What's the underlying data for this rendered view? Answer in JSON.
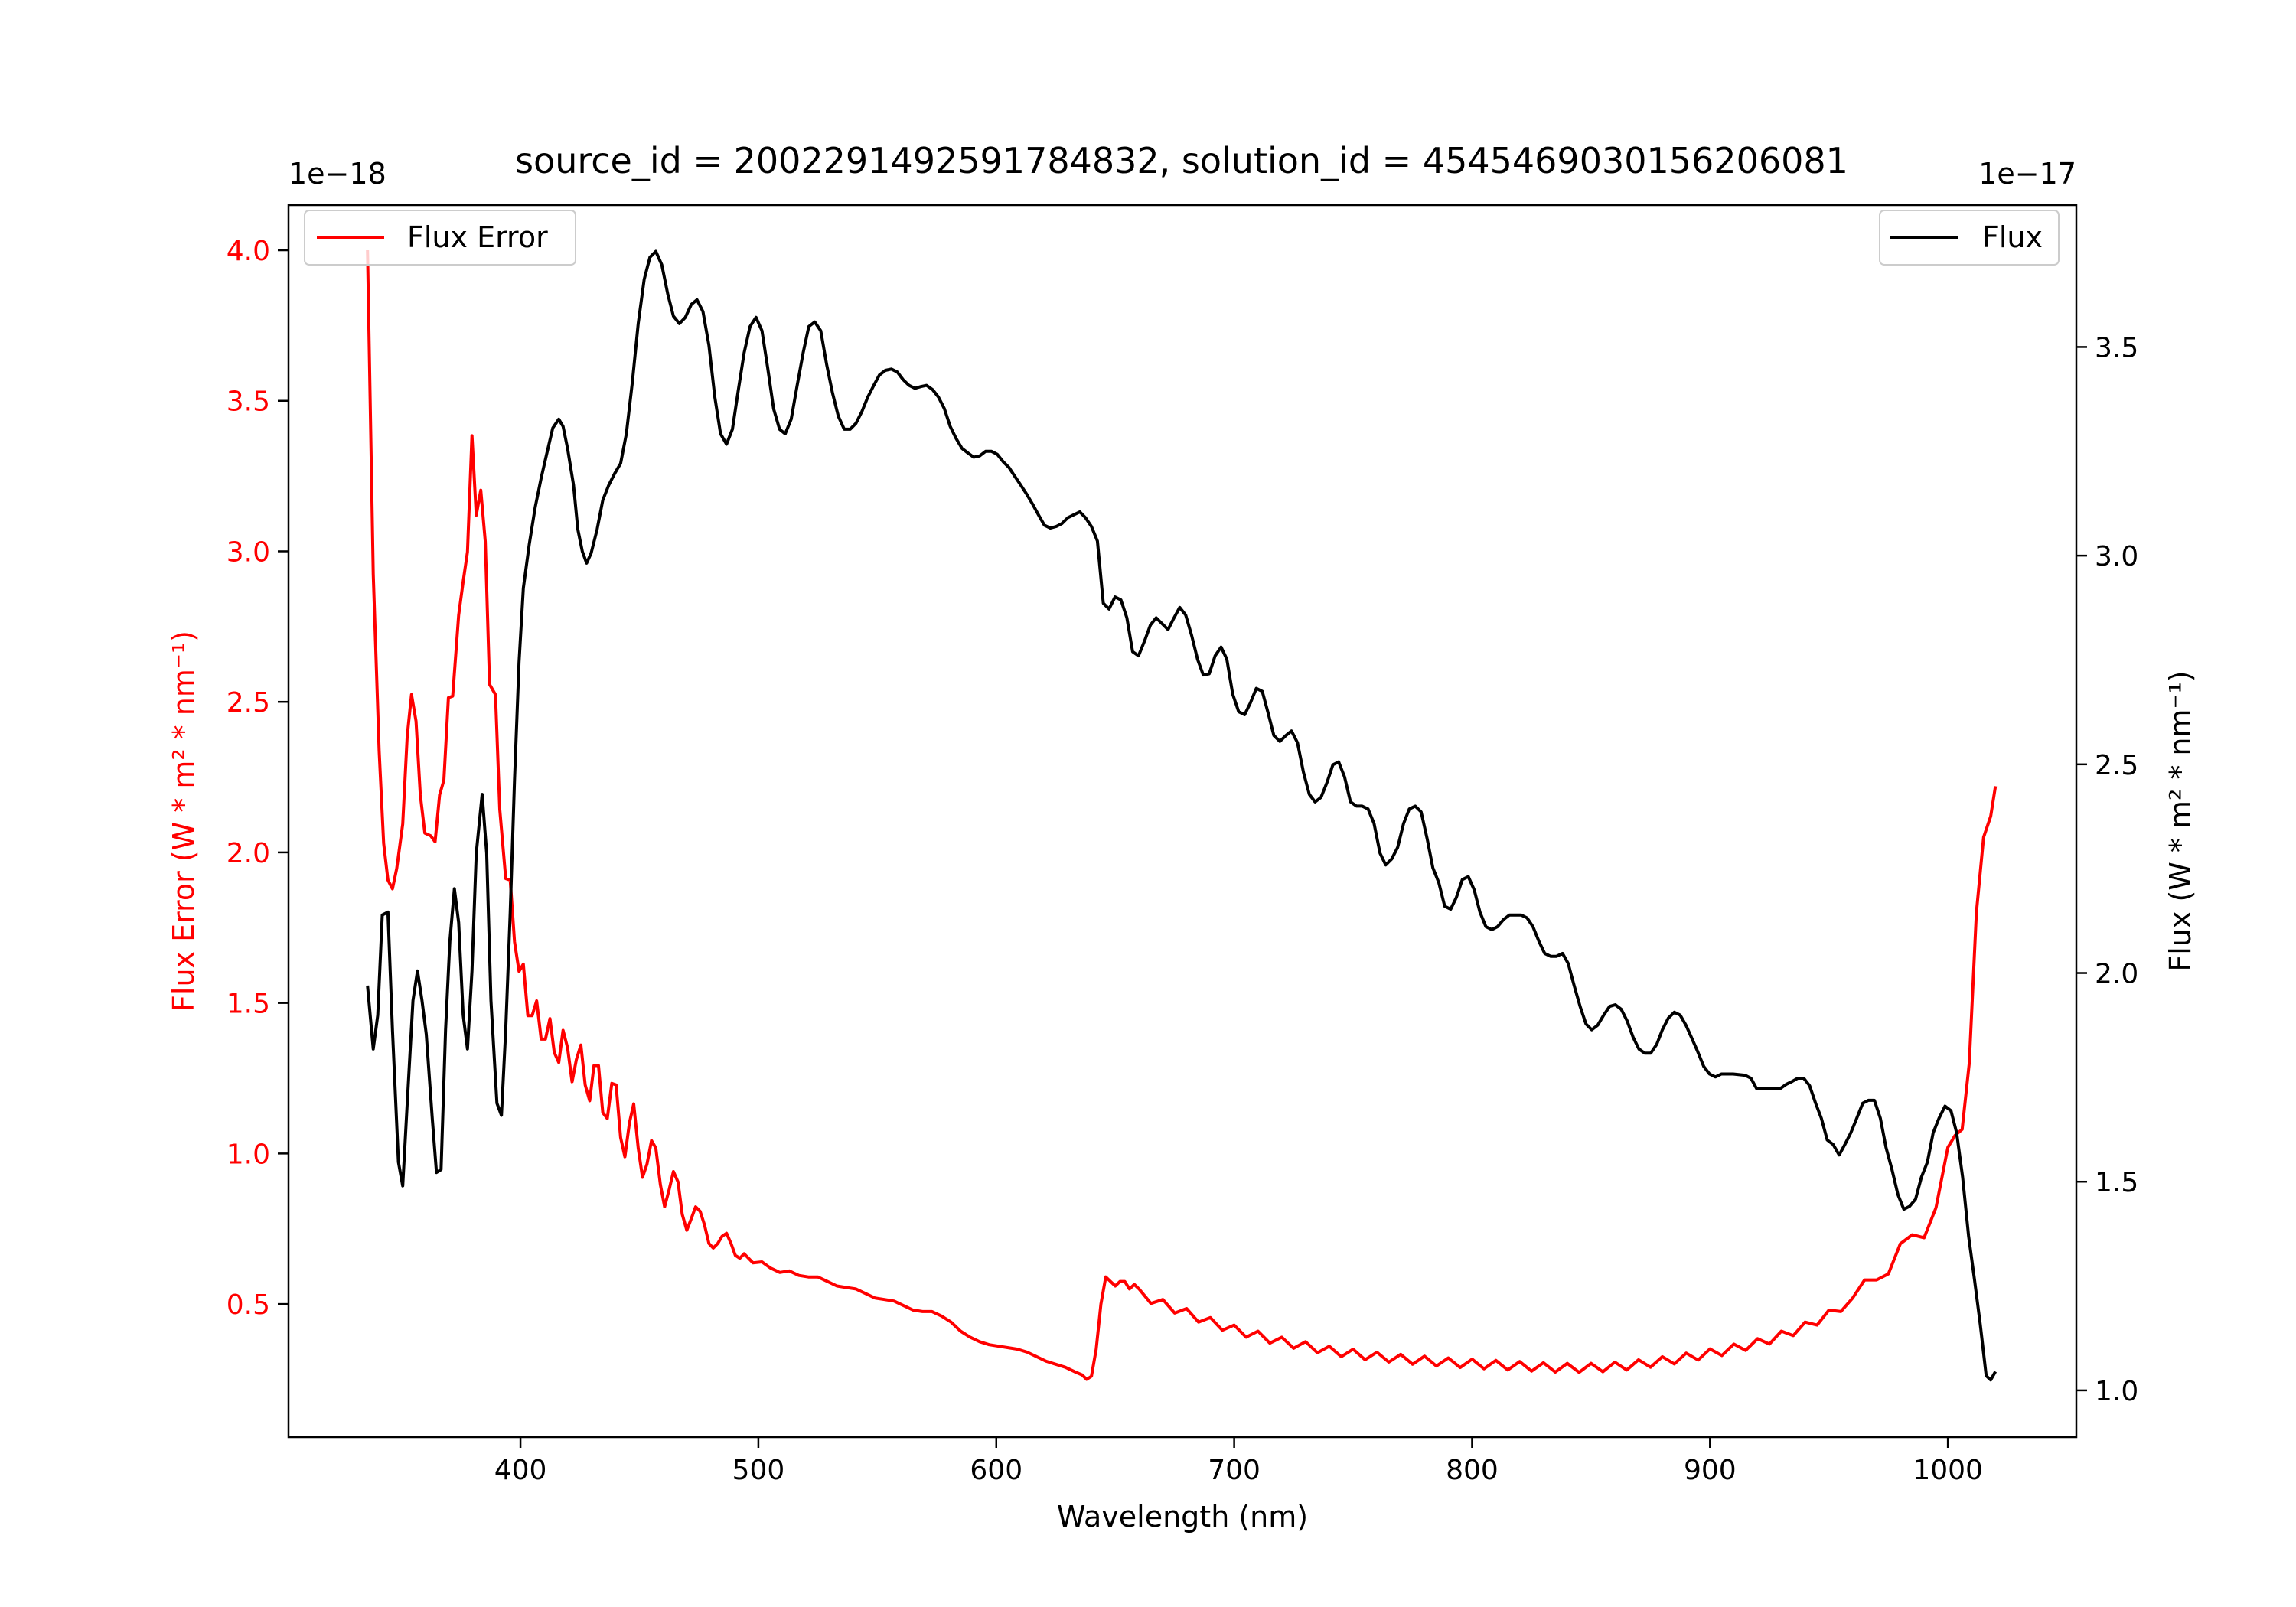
{
  "chart_data": {
    "type": "line",
    "title": "source_id = 2002291492591784832, solution_id = 4545469030156206081",
    "xlabel": "Wavelength (nm)",
    "ylabel_left": "Flux Error (W * m² * nm⁻¹)",
    "ylabel_right": "Flux (W * m² * nm⁻¹)",
    "offset_left": "1e−18",
    "offset_right": "1e−17",
    "xlim": [
      302.5,
      1054
    ],
    "ylim_left": [
      0.058,
      4.15
    ],
    "ylim_right": [
      0.888,
      3.84
    ],
    "x_ticks": [
      400,
      500,
      600,
      700,
      800,
      900,
      1000
    ],
    "y_ticks_left": [
      "0.5",
      "1.0",
      "1.5",
      "2.0",
      "2.5",
      "3.0",
      "3.5",
      "4.0"
    ],
    "y_ticks_right": [
      "1.0",
      "1.5",
      "2.0",
      "2.5",
      "3.0",
      "3.5"
    ],
    "grid": false,
    "legends": [
      {
        "label": "Flux Error",
        "placement": "upper-left",
        "color": "#ff0000"
      },
      {
        "label": "Flux",
        "placement": "upper-right",
        "color": "#000000"
      }
    ],
    "series": [
      {
        "name": "Flux Error",
        "axis": "left",
        "color": "#ff0000",
        "x": [
          335.7,
          338.1,
          340.6,
          342.5,
          344.3,
          346.2,
          348.0,
          350.5,
          352.4,
          354.2,
          356.1,
          357.9,
          359.8,
          362.3,
          364.1,
          366.0,
          367.8,
          369.7,
          371.5,
          374.0,
          375.9,
          377.7,
          379.6,
          381.4,
          383.3,
          385.2,
          387.0,
          389.5,
          391.3,
          393.8,
          395.7,
          397.5,
          399.4,
          401.2,
          403.1,
          404.9,
          406.8,
          408.7,
          410.5,
          412.4,
          414.2,
          416.1,
          417.9,
          419.8,
          421.7,
          423.5,
          425.4,
          427.2,
          429.1,
          430.9,
          432.8,
          434.6,
          436.5,
          438.4,
          440.2,
          442.1,
          443.9,
          445.8,
          447.6,
          449.5,
          451.3,
          453.2,
          455.1,
          456.9,
          458.8,
          460.6,
          462.5,
          464.3,
          466.2,
          468.0,
          469.9,
          471.8,
          473.6,
          475.5,
          477.3,
          479.2,
          481.0,
          482.9,
          484.7,
          486.6,
          488.5,
          490.3,
          492.2,
          494.0,
          497.7,
          501.5,
          505,
          509,
          513,
          517,
          521,
          525,
          529,
          533,
          537,
          541,
          545,
          549,
          553,
          557,
          561,
          565,
          569,
          573,
          577,
          581,
          585,
          589,
          593,
          597,
          601,
          605,
          609,
          613,
          617,
          621,
          625,
          629,
          633,
          636,
          638,
          640,
          642,
          644,
          646,
          648,
          650,
          652,
          654,
          656,
          658,
          660,
          665,
          670,
          675,
          680,
          685,
          690,
          695,
          700,
          705,
          710,
          715,
          720,
          725,
          730,
          735,
          740,
          745,
          750,
          755,
          760,
          765,
          770,
          775,
          780,
          785,
          790,
          795,
          800,
          805,
          810,
          815,
          820,
          825,
          830,
          835,
          840,
          845,
          850,
          855,
          860,
          865,
          870,
          875,
          880,
          885,
          890,
          895,
          900,
          905,
          910,
          915,
          920,
          925,
          930,
          935,
          940,
          945,
          950,
          955,
          960,
          965,
          970,
          975,
          980,
          985,
          990,
          995,
          1000,
          1003,
          1006,
          1009,
          1012,
          1015,
          1018,
          1020
        ],
        "y": [
          4.0,
          2.925,
          2.338,
          2.03,
          1.908,
          1.879,
          1.947,
          2.094,
          2.387,
          2.524,
          2.436,
          2.191,
          2.064,
          2.055,
          2.035,
          2.191,
          2.24,
          2.514,
          2.519,
          2.788,
          2.9,
          2.998,
          3.384,
          3.12,
          3.203,
          3.032,
          2.558,
          2.524,
          2.143,
          1.913,
          1.908,
          1.703,
          1.605,
          1.629,
          1.458,
          1.458,
          1.507,
          1.38,
          1.38,
          1.448,
          1.336,
          1.302,
          1.409,
          1.351,
          1.238,
          1.312,
          1.36,
          1.228,
          1.175,
          1.292,
          1.292,
          1.136,
          1.116,
          1.233,
          1.228,
          1.053,
          0.989,
          1.101,
          1.165,
          1.018,
          0.921,
          0.965,
          1.043,
          1.018,
          0.896,
          0.823,
          0.881,
          0.94,
          0.906,
          0.798,
          0.745,
          0.784,
          0.823,
          0.808,
          0.764,
          0.701,
          0.686,
          0.701,
          0.725,
          0.735,
          0.701,
          0.662,
          0.652,
          0.667,
          0.637,
          0.64,
          0.62,
          0.605,
          0.61,
          0.595,
          0.59,
          0.59,
          0.575,
          0.56,
          0.555,
          0.55,
          0.535,
          0.52,
          0.515,
          0.51,
          0.495,
          0.48,
          0.475,
          0.475,
          0.46,
          0.44,
          0.41,
          0.39,
          0.375,
          0.365,
          0.36,
          0.355,
          0.35,
          0.34,
          0.325,
          0.31,
          0.3,
          0.29,
          0.275,
          0.265,
          0.25,
          0.26,
          0.35,
          0.5,
          0.59,
          0.575,
          0.56,
          0.575,
          0.575,
          0.55,
          0.565,
          0.55,
          0.502,
          0.515,
          0.47,
          0.485,
          0.44,
          0.455,
          0.413,
          0.43,
          0.39,
          0.41,
          0.37,
          0.39,
          0.353,
          0.375,
          0.338,
          0.36,
          0.325,
          0.35,
          0.315,
          0.34,
          0.307,
          0.333,
          0.3,
          0.327,
          0.294,
          0.321,
          0.289,
          0.317,
          0.285,
          0.313,
          0.281,
          0.309,
          0.277,
          0.305,
          0.274,
          0.303,
          0.273,
          0.303,
          0.275,
          0.307,
          0.281,
          0.315,
          0.29,
          0.325,
          0.301,
          0.337,
          0.314,
          0.351,
          0.329,
          0.367,
          0.346,
          0.385,
          0.367,
          0.41,
          0.395,
          0.44,
          0.43,
          0.48,
          0.475,
          0.52,
          0.58,
          0.58,
          0.6,
          0.7,
          0.73,
          0.72,
          0.82,
          1.02,
          1.06,
          1.08,
          1.3,
          1.8,
          2.05,
          2.12,
          2.22
        ]
      },
      {
        "name": "Flux",
        "axis": "right",
        "color": "#000000",
        "x": [
          335.7,
          338.1,
          340.0,
          341.9,
          344.3,
          346.2,
          348.7,
          350.5,
          352.4,
          354.8,
          356.7,
          358.6,
          360.4,
          362.9,
          364.7,
          366.6,
          368.5,
          370.3,
          372.2,
          374.0,
          375.9,
          377.7,
          379.6,
          381.4,
          383.9,
          385.8,
          387.6,
          390.1,
          392.0,
          393.8,
          395.7,
          397.5,
          399.4,
          401.2,
          403.7,
          406.2,
          408.7,
          411.1,
          413.6,
          416.1,
          417.9,
          419.8,
          422.3,
          424.1,
          426.0,
          427.8,
          429.7,
          432.2,
          434.6,
          437.1,
          439.6,
          442.1,
          444.5,
          447.0,
          449.5,
          452.0,
          454.4,
          456.9,
          459.4,
          461.9,
          464.3,
          466.8,
          469.3,
          471.8,
          474.2,
          476.7,
          479.2,
          481.7,
          484.1,
          486.6,
          489.1,
          491.6,
          494.0,
          496.5,
          499.0,
          501.5,
          503.9,
          506.4,
          508.9,
          511.3,
          513.8,
          516.3,
          518.8,
          521.2,
          523.7,
          526.2,
          528.7,
          531.1,
          533.6,
          536.1,
          538.6,
          541.0,
          543.5,
          546.0,
          548.5,
          550.9,
          553.4,
          555.9,
          558.4,
          560.8,
          563.3,
          565.8,
          568.3,
          570.7,
          573.2,
          575.7,
          578.2,
          580.6,
          583.1,
          585.6,
          588.1,
          590.5,
          593.0,
          595.5,
          598.0,
          600.4,
          602.9,
          605.4,
          607.8,
          610.3,
          612.8,
          615.3,
          617.7,
          620.2,
          622.7,
          625.2,
          627.6,
          630.1,
          632.6,
          635.1,
          637.5,
          640.0,
          642.5,
          645.0,
          647.4,
          649.9,
          652.4,
          654.9,
          657.3,
          659.8,
          662.3,
          664.8,
          667.2,
          669.7,
          672.2,
          674.7,
          677.1,
          679.6,
          682.1,
          684.6,
          687.0,
          689.5,
          692.0,
          694.5,
          696.9,
          699.4,
          701.9,
          704.4,
          706.8,
          709.3,
          711.8,
          714.3,
          716.7,
          719.2,
          721.7,
          724.1,
          726.6,
          729.1,
          731.6,
          734.0,
          736.5,
          739.0,
          741.5,
          743.9,
          746.4,
          748.9,
          751.4,
          753.8,
          756.3,
          758.8,
          761.3,
          763.7,
          766.2,
          768.7,
          771.2,
          773.6,
          776.1,
          778.6,
          781.1,
          783.5,
          786.0,
          788.5,
          791.0,
          793.4,
          795.9,
          798.4,
          800.9,
          803.3,
          805.8,
          808.3,
          810.7,
          813.2,
          815.7,
          818.2,
          820.6,
          823.1,
          825.6,
          828.1,
          830.5,
          833.0,
          835.5,
          838.0,
          840.4,
          842.9,
          845.4,
          847.9,
          850.3,
          852.8,
          855.3,
          857.8,
          860.2,
          862.7,
          865.2,
          867.7,
          870.1,
          872.6,
          875.1,
          877.6,
          880.0,
          882.5,
          885.0,
          887.5,
          889.9,
          892.4,
          894.9,
          897.4,
          899.8,
          902.3,
          904.8,
          909.7,
          914.7,
          917.2,
          919.6,
          924.6,
          929.5,
          932.0,
          934.5,
          936.9,
          939.4,
          941.9,
          944.4,
          946.8,
          949.3,
          951.8,
          954.3,
          956.7,
          959.2,
          961.7,
          964.2,
          966.6,
          969.1,
          971.6,
          974.0,
          976.5,
          979.0,
          981.5,
          983.9,
          986.4,
          988.9,
          991.4,
          993.8,
          996.3,
          998.8,
          1001.3,
          1003.7,
          1006.2,
          1008.7,
          1011.2,
          1013.6,
          1016.1,
          1018.0,
          1020.0
        ],
        "y": [
          1.97,
          1.818,
          1.899,
          2.139,
          2.146,
          1.864,
          1.547,
          1.49,
          1.688,
          1.934,
          2.005,
          1.934,
          1.853,
          1.652,
          1.522,
          1.529,
          1.864,
          2.076,
          2.202,
          2.121,
          1.899,
          1.818,
          2.005,
          2.287,
          2.428,
          2.287,
          1.934,
          1.688,
          1.659,
          1.864,
          2.146,
          2.463,
          2.745,
          2.922,
          3.028,
          3.116,
          3.186,
          3.246,
          3.306,
          3.327,
          3.31,
          3.257,
          3.169,
          3.063,
          3.01,
          2.982,
          3.006,
          3.063,
          3.133,
          3.169,
          3.197,
          3.221,
          3.292,
          3.415,
          3.556,
          3.662,
          3.715,
          3.729,
          3.697,
          3.627,
          3.574,
          3.556,
          3.571,
          3.602,
          3.613,
          3.585,
          3.504,
          3.38,
          3.292,
          3.267,
          3.303,
          3.398,
          3.486,
          3.549,
          3.571,
          3.539,
          3.451,
          3.352,
          3.303,
          3.292,
          3.327,
          3.408,
          3.486,
          3.549,
          3.56,
          3.539,
          3.458,
          3.391,
          3.334,
          3.303,
          3.303,
          3.317,
          3.345,
          3.38,
          3.408,
          3.433,
          3.444,
          3.447,
          3.44,
          3.422,
          3.408,
          3.401,
          3.405,
          3.408,
          3.398,
          3.38,
          3.352,
          3.31,
          3.281,
          3.257,
          3.246,
          3.236,
          3.239,
          3.25,
          3.25,
          3.243,
          3.225,
          3.211,
          3.19,
          3.169,
          3.147,
          3.123,
          3.098,
          3.073,
          3.066,
          3.07,
          3.077,
          3.091,
          3.098,
          3.105,
          3.091,
          3.07,
          3.035,
          2.886,
          2.872,
          2.901,
          2.894,
          2.851,
          2.77,
          2.76,
          2.795,
          2.834,
          2.851,
          2.837,
          2.823,
          2.851,
          2.876,
          2.858,
          2.809,
          2.752,
          2.714,
          2.717,
          2.76,
          2.781,
          2.752,
          2.668,
          2.626,
          2.619,
          2.647,
          2.682,
          2.675,
          2.622,
          2.569,
          2.555,
          2.569,
          2.58,
          2.552,
          2.481,
          2.428,
          2.41,
          2.421,
          2.456,
          2.499,
          2.506,
          2.47,
          2.41,
          2.4,
          2.4,
          2.393,
          2.358,
          2.287,
          2.259,
          2.273,
          2.301,
          2.358,
          2.393,
          2.4,
          2.386,
          2.322,
          2.252,
          2.217,
          2.16,
          2.153,
          2.181,
          2.224,
          2.231,
          2.199,
          2.146,
          2.111,
          2.104,
          2.111,
          2.128,
          2.139,
          2.139,
          2.139,
          2.132,
          2.111,
          2.076,
          2.047,
          2.04,
          2.04,
          2.047,
          2.023,
          1.97,
          1.92,
          1.878,
          1.864,
          1.875,
          1.899,
          1.92,
          1.924,
          1.913,
          1.885,
          1.846,
          1.818,
          1.808,
          1.808,
          1.829,
          1.864,
          1.892,
          1.906,
          1.899,
          1.875,
          1.843,
          1.811,
          1.776,
          1.758,
          1.751,
          1.758,
          1.758,
          1.755,
          1.748,
          1.723,
          1.723,
          1.723,
          1.733,
          1.74,
          1.748,
          1.748,
          1.73,
          1.688,
          1.652,
          1.6,
          1.589,
          1.564,
          1.589,
          1.617,
          1.652,
          1.688,
          1.695,
          1.695,
          1.652,
          1.582,
          1.529,
          1.469,
          1.434,
          1.441,
          1.458,
          1.511,
          1.547,
          1.617,
          1.652,
          1.681,
          1.67,
          1.617,
          1.511,
          1.37,
          1.264,
          1.159,
          1.035,
          1.025,
          1.045
        ]
      }
    ]
  }
}
